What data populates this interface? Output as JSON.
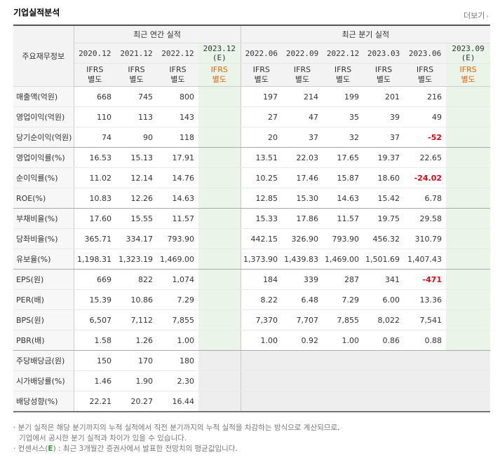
{
  "title": "기업실적분석",
  "more_label": "더보기",
  "headers": {
    "row_label": "주요재무정보",
    "annual_group": "최근 연간 실적",
    "quarterly_group": "최근 분기 실적",
    "periods": [
      "2020.12",
      "2021.12",
      "2022.12",
      "2023.12",
      "2022.06",
      "2022.09",
      "2022.12",
      "2023.03",
      "2023.06",
      "2023.09"
    ],
    "estimate_mark": "(E)",
    "ifrs_line1": "IFRS",
    "ifrs_line2": "별도"
  },
  "estimate_columns": [
    3,
    9
  ],
  "rows": [
    {
      "label": "매출액(억원)",
      "values": [
        "668",
        "745",
        "800",
        "",
        "197",
        "214",
        "199",
        "201",
        "216",
        ""
      ]
    },
    {
      "label": "영업이익(억원)",
      "values": [
        "110",
        "113",
        "143",
        "",
        "27",
        "47",
        "35",
        "39",
        "49",
        ""
      ]
    },
    {
      "label": "당기순이익(억원)",
      "values": [
        "74",
        "90",
        "118",
        "",
        "20",
        "37",
        "32",
        "37",
        "-52",
        ""
      ]
    },
    {
      "label": "영업이익률(%)",
      "values": [
        "16.53",
        "15.13",
        "17.91",
        "",
        "13.51",
        "22.03",
        "17.65",
        "19.37",
        "22.65",
        ""
      ]
    },
    {
      "label": "순이익률(%)",
      "values": [
        "11.02",
        "12.14",
        "14.76",
        "",
        "10.25",
        "17.46",
        "15.87",
        "18.60",
        "-24.02",
        ""
      ]
    },
    {
      "label": "ROE(%)",
      "values": [
        "10.83",
        "12.26",
        "14.63",
        "",
        "12.85",
        "15.30",
        "14.63",
        "15.42",
        "6.78",
        ""
      ]
    },
    {
      "label": "부채비율(%)",
      "values": [
        "17.60",
        "15.55",
        "11.57",
        "",
        "15.33",
        "17.86",
        "11.57",
        "19.75",
        "29.58",
        ""
      ]
    },
    {
      "label": "당좌비율(%)",
      "values": [
        "365.71",
        "334.17",
        "793.90",
        "",
        "442.15",
        "326.90",
        "793.90",
        "456.32",
        "310.79",
        ""
      ]
    },
    {
      "label": "유보율(%)",
      "values": [
        "1,198.31",
        "1,323.19",
        "1,469.00",
        "",
        "1,373.90",
        "1,439.83",
        "1,469.00",
        "1,501.69",
        "1,407.43",
        ""
      ]
    },
    {
      "label": "EPS(원)",
      "values": [
        "669",
        "822",
        "1,074",
        "",
        "184",
        "339",
        "287",
        "341",
        "-471",
        ""
      ]
    },
    {
      "label": "PER(배)",
      "values": [
        "15.39",
        "10.86",
        "7.29",
        "",
        "8.22",
        "6.48",
        "7.29",
        "6.00",
        "13.36",
        ""
      ]
    },
    {
      "label": "BPS(원)",
      "values": [
        "6,507",
        "7,112",
        "7,855",
        "",
        "7,370",
        "7,707",
        "7,855",
        "8,022",
        "7,541",
        ""
      ]
    },
    {
      "label": "PBR(배)",
      "values": [
        "1.58",
        "1.26",
        "1.00",
        "",
        "1.00",
        "0.92",
        "1.00",
        "0.86",
        "0.88",
        ""
      ]
    },
    {
      "label": "주당배당금(원)",
      "values": [
        "150",
        "170",
        "180",
        "",
        "",
        "",
        "",
        "",
        "",
        ""
      ]
    },
    {
      "label": "시가배당률(%)",
      "values": [
        "1.46",
        "1.90",
        "2.30",
        "",
        "",
        "",
        "",
        "",
        "",
        ""
      ]
    },
    {
      "label": "배당성향(%)",
      "values": [
        "22.21",
        "20.27",
        "16.44",
        "",
        "",
        "",
        "",
        "",
        "",
        ""
      ]
    }
  ],
  "notes": {
    "line1": "· 분기 실적은 해당 분기까지의 누적 실적에서 직전 분기까지의 누적 실적을 차감하는 방식으로 계산되므로,",
    "line2": "  기업에서 공시한 분기 실적과 차이가 있을 수 있습니다.",
    "line3_prefix": "· 컨센서스(",
    "line3_mark": "E",
    "line3_suffix": ") : 최근 3개월간 증권사에서 발표한 전망치의 평균값입니다."
  },
  "colors": {
    "negative": "#e60012",
    "ifrs": "#e1640a",
    "estimate_bg": "#eaf4e9"
  }
}
